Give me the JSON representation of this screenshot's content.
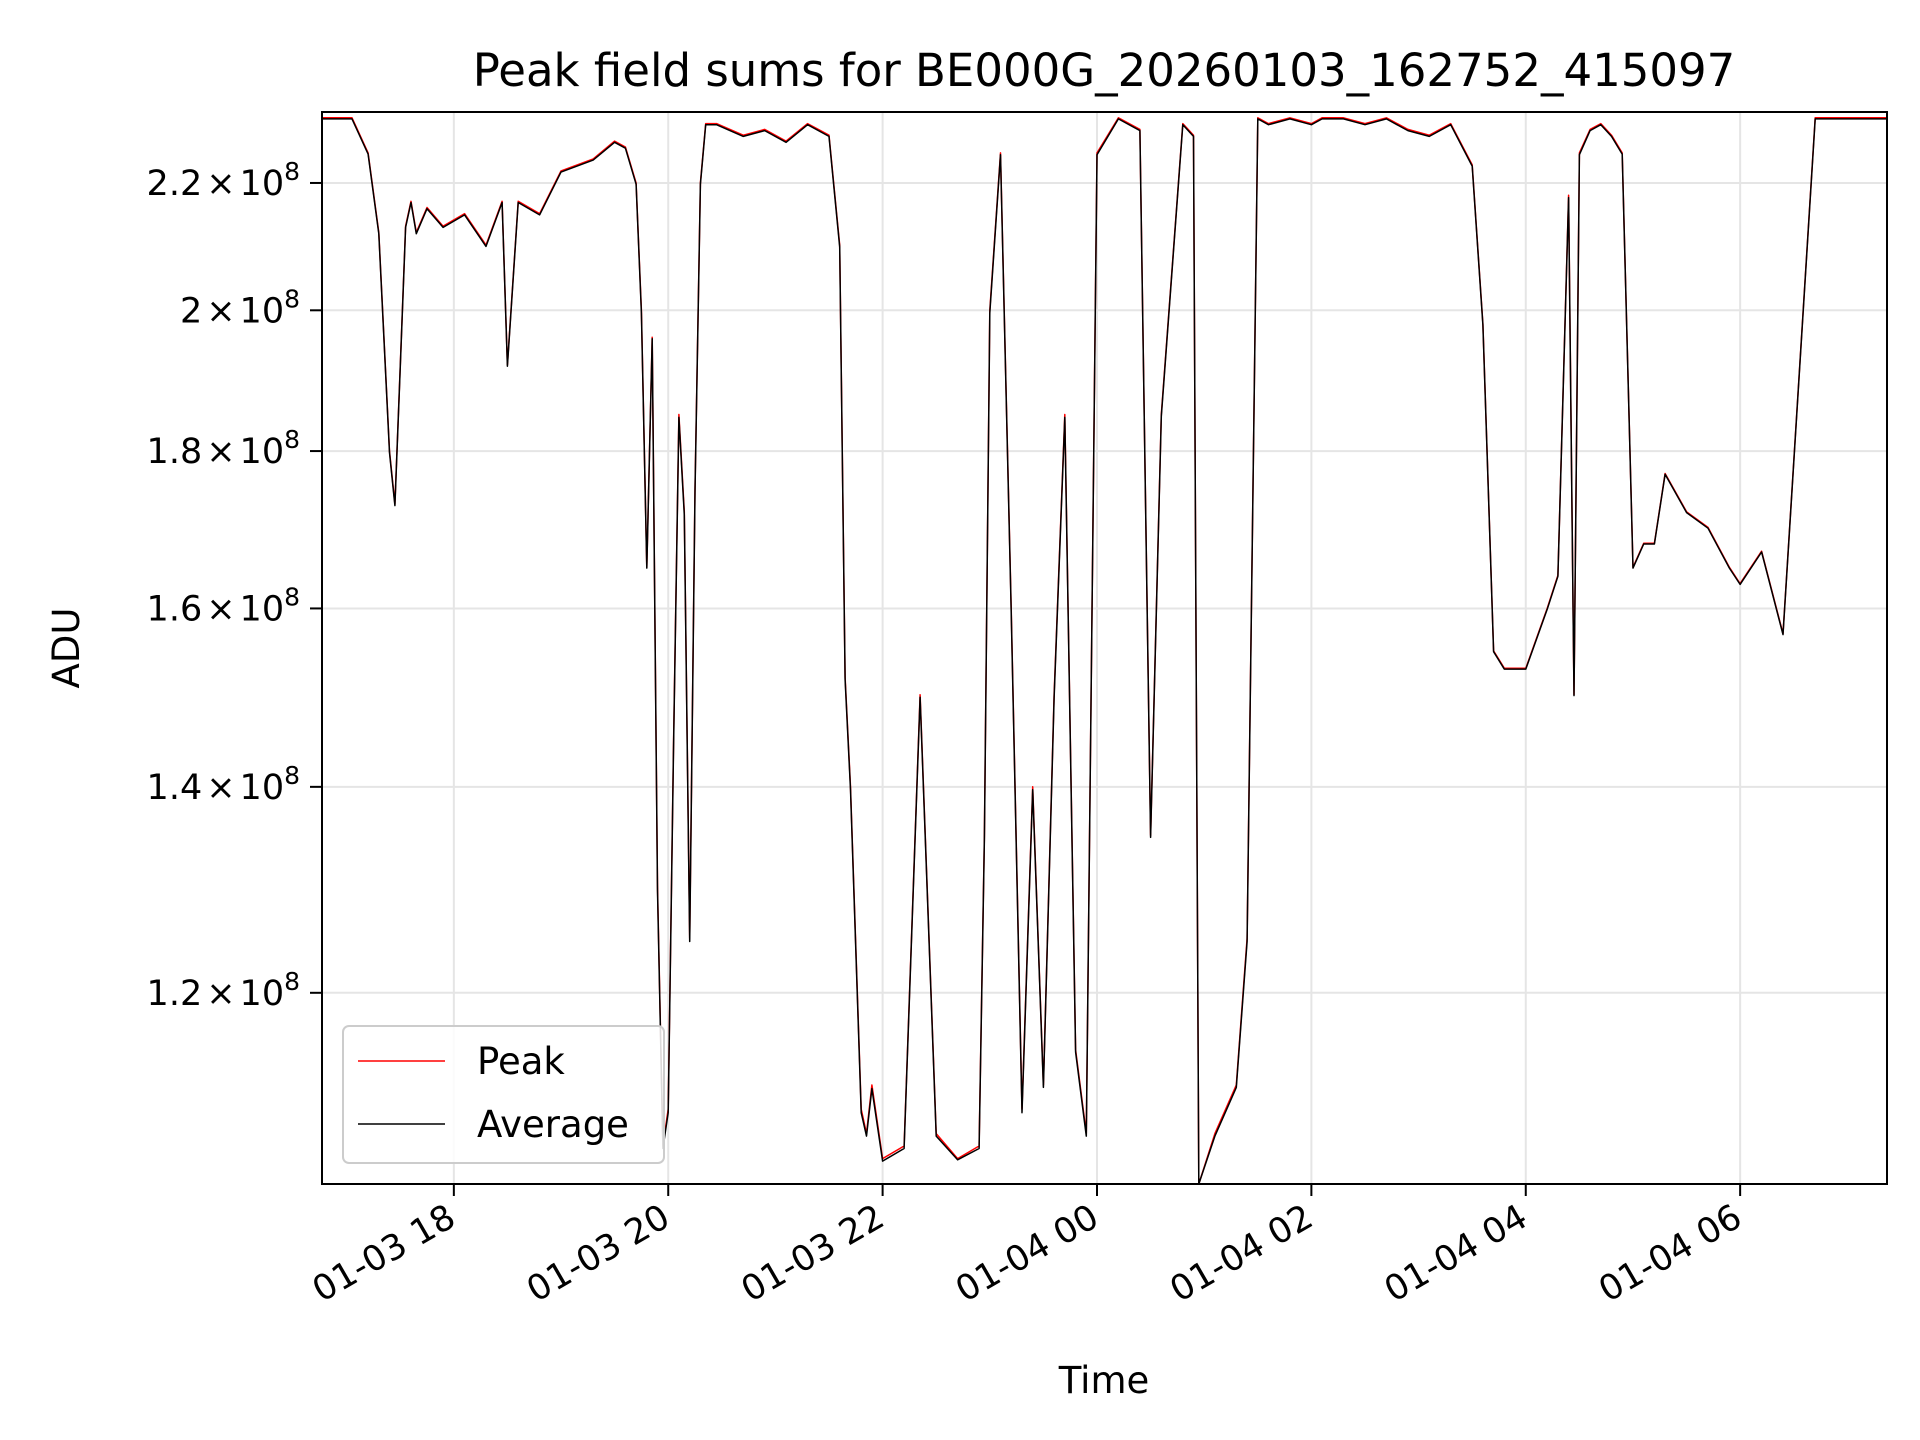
{
  "chart_data": {
    "type": "line",
    "title": "Peak field sums for BE000G_20260103_162752_415097",
    "xlabel": "Time",
    "ylabel": "ADU",
    "y_scale": "log",
    "xlim_hours": [
      16.77,
      31.37
    ],
    "ylim": [
      104000000,
      232000000
    ],
    "grid": true,
    "legend_position": "lower-left",
    "x_unit": "hours since 2026-01-03 00:00",
    "x_ticks": [
      {
        "value": 18,
        "label": "01-03 18"
      },
      {
        "value": 20,
        "label": "01-03 20"
      },
      {
        "value": 22,
        "label": "01-03 22"
      },
      {
        "value": 24,
        "label": "01-04 00"
      },
      {
        "value": 26,
        "label": "01-04 02"
      },
      {
        "value": 28,
        "label": "01-04 04"
      },
      {
        "value": 30,
        "label": "01-04 06"
      }
    ],
    "y_ticks": [
      {
        "value": 120000000,
        "mantissa": "1.2",
        "times": "×",
        "base": "10",
        "exp": "8"
      },
      {
        "value": 140000000,
        "mantissa": "1.4",
        "times": "×",
        "base": "10",
        "exp": "8"
      },
      {
        "value": 160000000,
        "mantissa": "1.6",
        "times": "×",
        "base": "10",
        "exp": "8"
      },
      {
        "value": 180000000,
        "mantissa": "1.8",
        "times": "×",
        "base": "10",
        "exp": "8"
      },
      {
        "value": 200000000,
        "mantissa": "2",
        "times": "×",
        "base": "10",
        "exp": "8"
      },
      {
        "value": 220000000,
        "mantissa": "2.2",
        "times": "×",
        "base": "10",
        "exp": "8"
      }
    ],
    "series": [
      {
        "name": "Peak",
        "color": "#ff0000",
        "x": [
          16.77,
          17.05,
          17.2,
          17.3,
          17.4,
          17.45,
          17.5,
          17.55,
          17.6,
          17.65,
          17.75,
          17.9,
          18.1,
          18.3,
          18.45,
          18.5,
          18.6,
          18.8,
          19.0,
          19.3,
          19.5,
          19.6,
          19.7,
          19.75,
          19.8,
          19.85,
          19.9,
          19.95,
          20.0,
          20.05,
          20.1,
          20.15,
          20.2,
          20.25,
          20.3,
          20.35,
          20.45,
          20.7,
          20.9,
          21.1,
          21.3,
          21.5,
          21.6,
          21.65,
          21.7,
          21.8,
          21.85,
          21.9,
          22.0,
          22.2,
          22.35,
          22.5,
          22.7,
          22.9,
          22.95,
          23.0,
          23.1,
          23.2,
          23.3,
          23.4,
          23.5,
          23.6,
          23.7,
          23.8,
          23.9,
          24.0,
          24.2,
          24.4,
          24.5,
          24.6,
          24.8,
          24.9,
          24.95,
          25.1,
          25.3,
          25.4,
          25.5,
          25.6,
          25.8,
          26.0,
          26.1,
          26.3,
          26.5,
          26.7,
          26.9,
          27.1,
          27.3,
          27.5,
          27.6,
          27.7,
          27.8,
          28.0,
          28.2,
          28.3,
          28.4,
          28.45,
          28.5,
          28.6,
          28.7,
          28.8,
          28.9,
          29.0,
          29.1,
          29.2,
          29.3,
          29.5,
          29.7,
          29.9,
          30.0,
          30.2,
          30.4,
          30.7,
          30.9,
          31.1,
          31.37
        ],
        "values": [
          231000000,
          231000000,
          225000000,
          212000000,
          180000000,
          173000000,
          192000000,
          213000000,
          217000000,
          212000000,
          216000000,
          213000000,
          215000000,
          210000000,
          217000000,
          192000000,
          217000000,
          215000000,
          222000000,
          224000000,
          227000000,
          226000000,
          220000000,
          200000000,
          165000000,
          196000000,
          130000000,
          107000000,
          110000000,
          145000000,
          185000000,
          172000000,
          125000000,
          175000000,
          220000000,
          230000000,
          230000000,
          228000000,
          229000000,
          227000000,
          230000000,
          228000000,
          210000000,
          152000000,
          140000000,
          110000000,
          108000000,
          112000000,
          106000000,
          107000000,
          150000000,
          108000000,
          106000000,
          107000000,
          135000000,
          200000000,
          225000000,
          160000000,
          110000000,
          140000000,
          112000000,
          150000000,
          185000000,
          115000000,
          108000000,
          225000000,
          231000000,
          229000000,
          135000000,
          185000000,
          230000000,
          228000000,
          104000000,
          108000000,
          112000000,
          125000000,
          231000000,
          230000000,
          231000000,
          230000000,
          231000000,
          231000000,
          230000000,
          231000000,
          229000000,
          228000000,
          230000000,
          223000000,
          198000000,
          155000000,
          153000000,
          153000000,
          160000000,
          164000000,
          218000000,
          150000000,
          225000000,
          229000000,
          230000000,
          228000000,
          225000000,
          165000000,
          168000000,
          168000000,
          177000000,
          172000000,
          170000000,
          165000000,
          163000000,
          167000000,
          157000000,
          231000000,
          231000000,
          231000000,
          231000000
        ]
      },
      {
        "name": "Average",
        "color": "#000000",
        "x": [
          16.77,
          17.05,
          17.2,
          17.3,
          17.4,
          17.45,
          17.5,
          17.55,
          17.6,
          17.65,
          17.75,
          17.9,
          18.1,
          18.3,
          18.45,
          18.5,
          18.6,
          18.8,
          19.0,
          19.3,
          19.5,
          19.6,
          19.7,
          19.75,
          19.8,
          19.85,
          19.9,
          19.95,
          20.0,
          20.05,
          20.1,
          20.15,
          20.2,
          20.25,
          20.3,
          20.35,
          20.45,
          20.7,
          20.9,
          21.1,
          21.3,
          21.5,
          21.6,
          21.65,
          21.7,
          21.8,
          21.85,
          21.9,
          22.0,
          22.2,
          22.35,
          22.5,
          22.7,
          22.9,
          22.95,
          23.0,
          23.1,
          23.2,
          23.3,
          23.4,
          23.5,
          23.6,
          23.7,
          23.8,
          23.9,
          24.0,
          24.2,
          24.4,
          24.5,
          24.6,
          24.8,
          24.9,
          24.95,
          25.1,
          25.3,
          25.4,
          25.5,
          25.6,
          25.8,
          26.0,
          26.1,
          26.3,
          26.5,
          26.7,
          26.9,
          27.1,
          27.3,
          27.5,
          27.6,
          27.7,
          27.8,
          28.0,
          28.2,
          28.3,
          28.4,
          28.45,
          28.5,
          28.6,
          28.7,
          28.8,
          28.9,
          29.0,
          29.1,
          29.2,
          29.3,
          29.5,
          29.7,
          29.9,
          30.0,
          30.2,
          30.4,
          30.7,
          30.9,
          31.1,
          31.37
        ],
        "values": [
          230800000,
          230800000,
          224800000,
          211800000,
          179800000,
          172800000,
          191800000,
          212800000,
          216800000,
          211800000,
          215800000,
          212800000,
          214800000,
          209800000,
          216800000,
          191800000,
          216800000,
          214800000,
          221800000,
          223800000,
          226800000,
          225800000,
          219800000,
          199600000,
          164900000,
          195800000,
          129500000,
          106800000,
          109700000,
          144600000,
          184600000,
          171600000,
          124700000,
          174600000,
          219800000,
          229800000,
          229800000,
          227800000,
          228800000,
          226800000,
          229800000,
          227800000,
          209700000,
          151700000,
          139700000,
          109700000,
          107800000,
          111700000,
          105800000,
          106800000,
          149700000,
          107800000,
          105900000,
          106800000,
          134700000,
          199600000,
          224700000,
          159600000,
          109700000,
          139700000,
          111800000,
          149600000,
          184600000,
          114800000,
          107800000,
          224700000,
          230800000,
          228800000,
          134800000,
          184700000,
          229800000,
          227800000,
          104000000,
          107800000,
          111800000,
          124700000,
          230800000,
          229800000,
          230800000,
          229800000,
          230800000,
          230800000,
          229800000,
          230800000,
          228800000,
          227800000,
          229800000,
          222800000,
          197800000,
          154900000,
          152900000,
          152900000,
          159900000,
          163900000,
          217600000,
          149900000,
          224700000,
          228800000,
          229800000,
          227800000,
          224800000,
          164900000,
          167900000,
          167900000,
          176900000,
          171900000,
          169900000,
          164900000,
          162900000,
          166900000,
          156900000,
          230800000,
          230800000,
          230800000,
          230800000
        ]
      }
    ]
  }
}
